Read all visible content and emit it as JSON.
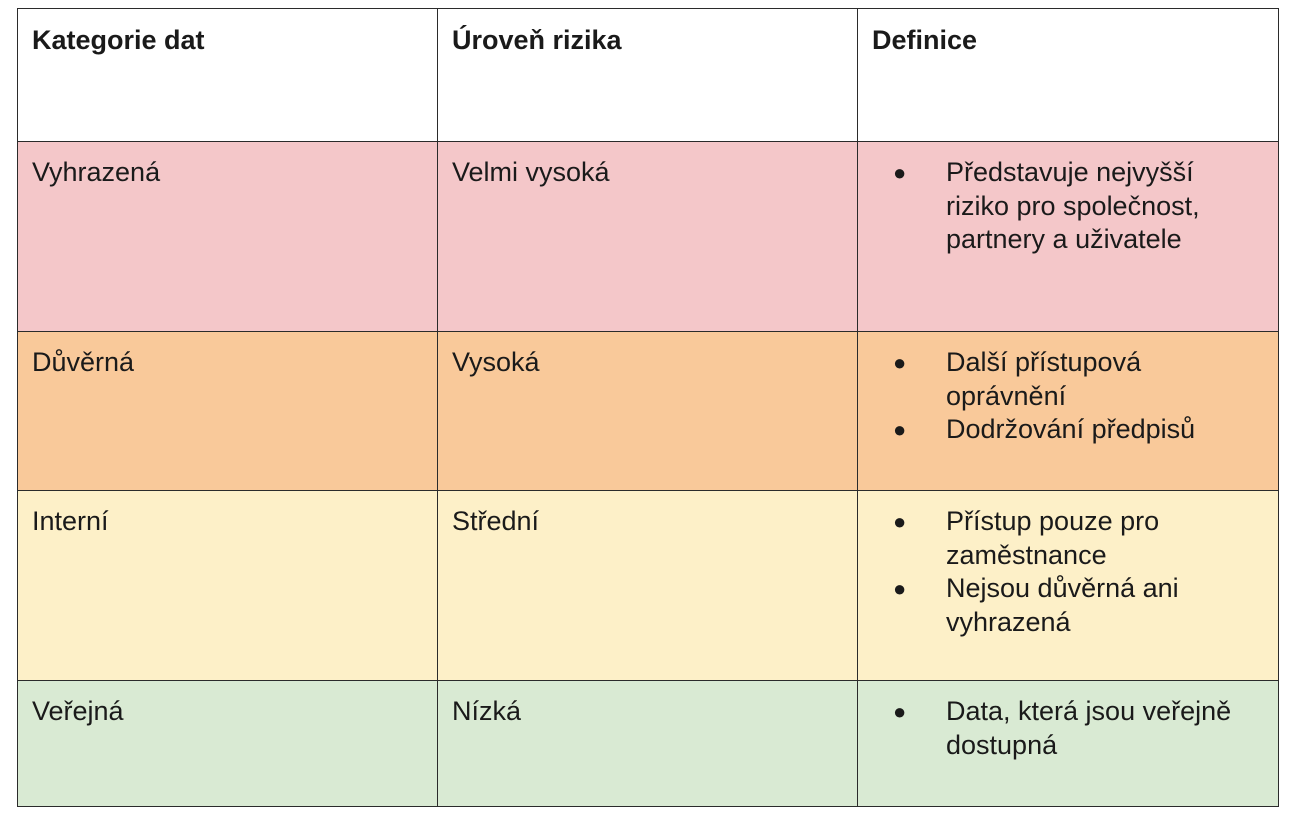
{
  "table": {
    "headers": [
      "Kategorie dat",
      "Úroveň rizika",
      "Definice"
    ],
    "rows": [
      {
        "category": "Vyhrazená",
        "risk": "Velmi vysoká",
        "color": "#f4c7c9",
        "definitions": [
          "Představuje nejvyšší riziko pro společnost, partnery a uživatele"
        ]
      },
      {
        "category": "Důvěrná",
        "risk": "Vysoká",
        "color": "#f9c99a",
        "definitions": [
          "Další přístupová oprávnění",
          "Dodržování předpisů"
        ]
      },
      {
        "category": "Interní",
        "risk": "Střední",
        "color": "#fdf0c8",
        "definitions": [
          "Přístup pouze pro zaměstnance",
          "Nejsou důvěrná ani vyhrazená"
        ]
      },
      {
        "category": "Veřejná",
        "risk": "Nízká",
        "color": "#d9ead3",
        "definitions": [
          "Data, která jsou veřejně dostupná"
        ]
      }
    ],
    "bullet_icon": "bullet-dot"
  }
}
